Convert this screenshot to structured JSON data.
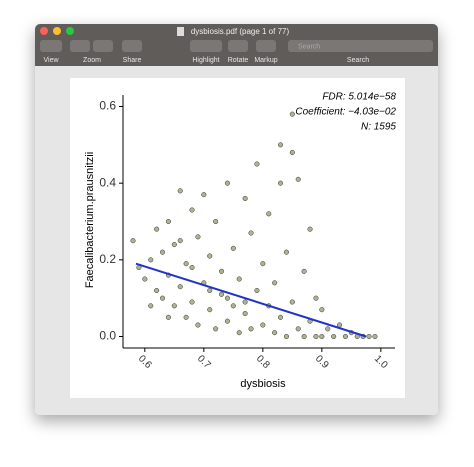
{
  "window": {
    "title": "dysbiosis.pdf (page 1 of 77)",
    "toolbar": {
      "view": "View",
      "zoom": "Zoom",
      "share": "Share",
      "highlight": "Highlight",
      "rotate": "Rotate",
      "markup": "Markup",
      "search_placeholder": "Search",
      "search": "Search"
    }
  },
  "chart_data": {
    "type": "scatter",
    "x_label": "dysbiosis",
    "y_label": "Faecalibacterium.prausnitzii",
    "annotations": [
      "FDR: 5.014e−58",
      "Coefficient: −4.03e−02",
      "N: 1595"
    ],
    "xlim": [
      0.563,
      1.024
    ],
    "ylim": [
      -0.03,
      0.63
    ],
    "xticks": [
      0.6,
      0.7,
      0.8,
      0.9,
      {
        "value": 1,
        "label": "1.0"
      }
    ],
    "yticks": [
      {
        "value": 0,
        "label": "0.0"
      },
      0.2,
      0.4,
      0.6
    ],
    "points": {
      "color": "#7d8c52",
      "x": [
        0.58,
        0.59,
        0.6,
        0.61,
        0.62,
        0.62,
        0.63,
        0.63,
        0.64,
        0.64,
        0.65,
        0.65,
        0.66,
        0.66,
        0.67,
        0.67,
        0.68,
        0.68,
        0.69,
        0.69,
        0.7,
        0.7,
        0.71,
        0.71,
        0.72,
        0.72,
        0.73,
        0.73,
        0.74,
        0.74,
        0.75,
        0.75,
        0.76,
        0.76,
        0.77,
        0.77,
        0.78,
        0.78,
        0.79,
        0.79,
        0.8,
        0.8,
        0.81,
        0.81,
        0.82,
        0.82,
        0.83,
        0.83,
        0.84,
        0.84,
        0.85,
        0.85,
        0.86,
        0.86,
        0.87,
        0.87,
        0.88,
        0.88,
        0.89,
        0.89,
        0.9,
        0.9,
        0.91,
        0.92,
        0.93,
        0.94,
        0.95,
        0.96,
        0.97,
        0.98,
        0.99,
        0.85,
        0.83,
        0.66,
        0.68,
        0.71,
        0.74,
        0.77,
        0.64,
        0.61
      ],
      "y": [
        0.25,
        0.18,
        0.15,
        0.2,
        0.12,
        0.28,
        0.22,
        0.1,
        0.3,
        0.16,
        0.08,
        0.24,
        0.38,
        0.13,
        0.05,
        0.19,
        0.33,
        0.09,
        0.26,
        0.03,
        0.14,
        0.37,
        0.07,
        0.21,
        0.02,
        0.3,
        0.11,
        0.17,
        0.4,
        0.04,
        0.23,
        0.08,
        0.01,
        0.15,
        0.36,
        0.06,
        0.27,
        0.02,
        0.12,
        0.45,
        0.03,
        0.19,
        0.08,
        0.32,
        0.01,
        0.14,
        0.5,
        0.05,
        0.22,
        0,
        0.58,
        0.09,
        0.41,
        0.02,
        0.17,
        0,
        0.28,
        0.04,
        0.1,
        0,
        0.07,
        0,
        0.02,
        0,
        0.03,
        0,
        0.01,
        0,
        0,
        0,
        0,
        0.48,
        0.4,
        0.25,
        0.18,
        0.12,
        0.1,
        0.09,
        0.05,
        0.08
      ]
    },
    "fit_line": {
      "color": "#2233cc",
      "x": [
        0.585,
        0.975
      ],
      "y": [
        0.19,
        0
      ]
    }
  }
}
